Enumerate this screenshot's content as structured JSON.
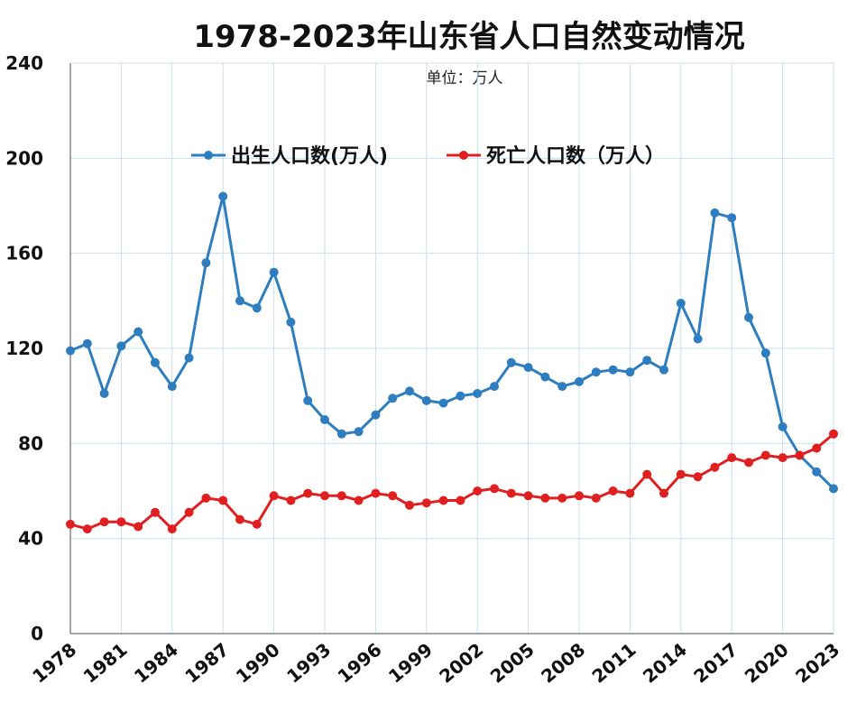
{
  "chart_data": {
    "type": "line",
    "title": "1978-2023年山东省人口自然变动情况",
    "subtitle": "单位：万人",
    "xlabel": "",
    "ylabel": "",
    "ylim": [
      0,
      240
    ],
    "yticks": [
      "0",
      "40",
      "80",
      "120",
      "160",
      "200",
      "240"
    ],
    "xticks": [
      "1978",
      "1981",
      "1984",
      "1987",
      "1990",
      "1993",
      "1996",
      "1999",
      "2002",
      "2005",
      "2008",
      "2011",
      "2014",
      "2017",
      "2020",
      "2023"
    ],
    "grid": true,
    "legend_position": "top-center",
    "x": [
      1978,
      1979,
      1980,
      1981,
      1982,
      1983,
      1984,
      1985,
      1986,
      1987,
      1988,
      1989,
      1990,
      1991,
      1992,
      1993,
      1994,
      1995,
      1996,
      1997,
      1998,
      1999,
      2000,
      2001,
      2002,
      2003,
      2004,
      2005,
      2006,
      2007,
      2008,
      2009,
      2010,
      2011,
      2012,
      2013,
      2014,
      2015,
      2016,
      2017,
      2018,
      2019,
      2020,
      2021,
      2022,
      2023
    ],
    "series": [
      {
        "name": "出生人口数(万人)",
        "color": "#2e7ebf",
        "values": [
          119,
          122,
          101,
          121,
          127,
          114,
          104,
          116,
          156,
          184,
          140,
          137,
          152,
          131,
          98,
          90,
          84,
          85,
          92,
          99,
          102,
          98,
          97,
          100,
          101,
          104,
          114,
          112,
          108,
          104,
          106,
          110,
          111,
          110,
          115,
          111,
          139,
          124,
          177,
          175,
          133,
          118,
          87,
          75,
          68,
          61
        ]
      },
      {
        "name": "死亡人口数（万人）",
        "color": "#e02020",
        "values": [
          46,
          44,
          47,
          47,
          45,
          51,
          44,
          51,
          57,
          56,
          48,
          46,
          58,
          56,
          59,
          58,
          58,
          56,
          59,
          58,
          54,
          55,
          56,
          56,
          60,
          61,
          59,
          58,
          57,
          57,
          58,
          57,
          60,
          59,
          67,
          59,
          67,
          66,
          70,
          74,
          72,
          75,
          74,
          75,
          78,
          84
        ]
      }
    ]
  }
}
